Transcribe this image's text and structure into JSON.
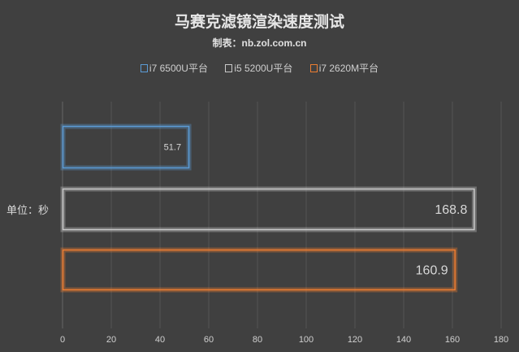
{
  "chart_data": {
    "type": "bar",
    "orientation": "horizontal",
    "title": "马赛克滤镜渲染速度测试",
    "subtitle": "制表：nb.zol.com.cn",
    "ylabel": "单位：秒",
    "xlabel": "",
    "xlim": [
      0,
      180
    ],
    "xticks": [
      0,
      20,
      40,
      60,
      80,
      100,
      120,
      140,
      160,
      180
    ],
    "grid": true,
    "legend_position": "top",
    "series": [
      {
        "name": "i7 6500U平台",
        "value": 51.7,
        "label": "51.7",
        "color": "#5b9bd5"
      },
      {
        "name": "i5 5200U平台",
        "value": 168.8,
        "label": "168.8",
        "color": "#c9c9c9"
      },
      {
        "name": "i7 2620M平台",
        "value": 160.9,
        "label": "160.9",
        "color": "#ed7d31"
      }
    ]
  }
}
